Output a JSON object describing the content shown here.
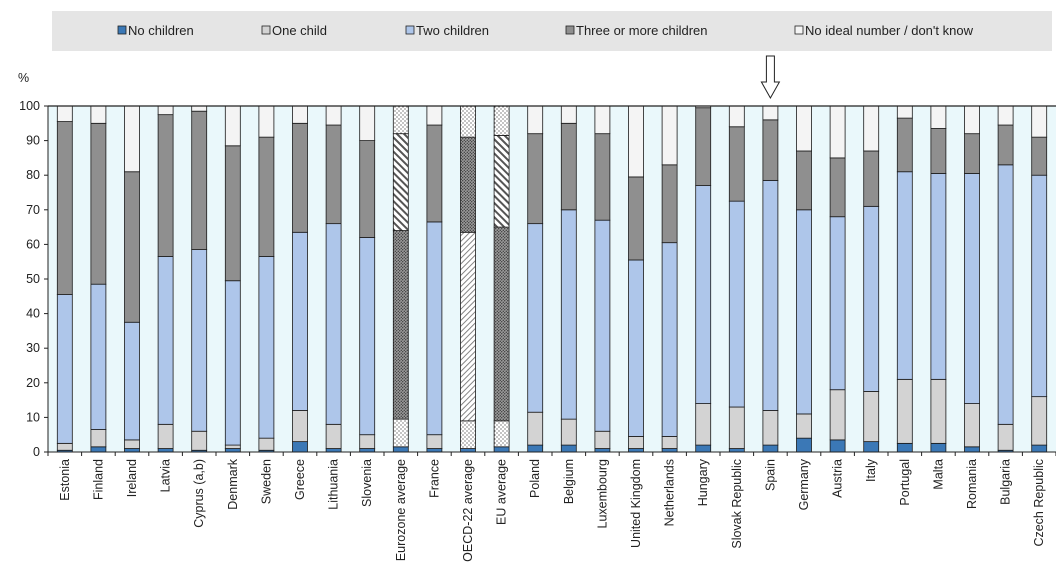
{
  "chart_data": {
    "type": "bar",
    "stacked": true,
    "y_unit": "%",
    "ylim": [
      0,
      100
    ],
    "yticks": [
      0,
      10,
      20,
      30,
      40,
      50,
      60,
      70,
      80,
      90,
      100
    ],
    "grid": false,
    "legend_position": "top",
    "marker": {
      "category": "Spain",
      "symbol": "down-arrow"
    },
    "categories": [
      "Estonia",
      "Finland",
      "Ireland",
      "Latvia",
      "Cyprus (a,b)",
      "Denmark",
      "Sweden",
      "Greece",
      "Lithuania",
      "Slovenia",
      "Eurozone average",
      "France",
      "OECD-22 average",
      "EU average",
      "Poland",
      "Belgium",
      "Luxembourg",
      "United Kingdom",
      "Netherlands",
      "Hungary",
      "Slovak Republic",
      "Spain",
      "Germany",
      "Austria",
      "Italy",
      "Portugal",
      "Malta",
      "Romania",
      "Bulgaria",
      "Czech Republic"
    ],
    "average_categories": [
      "Eurozone average",
      "OECD-22 average",
      "EU average"
    ],
    "series": [
      {
        "name": "No children",
        "color": "#3b78b6",
        "values": [
          0.5,
          1.5,
          1.0,
          1.0,
          0.5,
          1.0,
          0.5,
          3.0,
          1.0,
          1.0,
          1.5,
          1.0,
          1.0,
          1.5,
          2.0,
          2.0,
          1.0,
          1.0,
          1.0,
          2.0,
          1.0,
          2.0,
          4.0,
          3.5,
          3.0,
          2.5,
          2.5,
          1.5,
          0.5,
          2.0
        ]
      },
      {
        "name": "One child",
        "color": "#d3d3d3",
        "values": [
          2.0,
          5.0,
          2.5,
          7.0,
          5.5,
          1.0,
          3.5,
          9.0,
          7.0,
          4.0,
          8.0,
          4.0,
          8.0,
          7.5,
          9.5,
          7.5,
          5.0,
          3.5,
          3.5,
          12.0,
          12.0,
          10.0,
          7.0,
          14.5,
          14.5,
          18.5,
          18.5,
          12.5,
          7.5,
          14.0
        ]
      },
      {
        "name": "Two children",
        "color": "#aec6ea",
        "values": [
          43.0,
          42.0,
          34.0,
          48.5,
          52.5,
          47.5,
          52.5,
          51.5,
          58.0,
          57.0,
          54.5,
          61.5,
          54.5,
          56.0,
          54.5,
          60.5,
          61.0,
          51.0,
          56.0,
          63.0,
          59.5,
          66.5,
          59.0,
          50.0,
          53.5,
          60.0,
          59.5,
          66.5,
          75.0,
          64.0
        ]
      },
      {
        "name": "Three or more children",
        "color": "#8f8f8f",
        "values": [
          50.0,
          46.5,
          43.5,
          41.0,
          40.0,
          39.0,
          34.5,
          31.5,
          28.5,
          28.0,
          28.0,
          28.0,
          27.5,
          26.5,
          26.0,
          25.0,
          25.0,
          24.0,
          22.5,
          22.5,
          21.5,
          17.5,
          17.0,
          17.0,
          16.0,
          15.5,
          13.0,
          11.5,
          11.5,
          11.0
        ]
      },
      {
        "name": "No ideal number / don't know",
        "color": "#f4f4f4",
        "values": [
          4.5,
          5.0,
          19.0,
          2.5,
          1.5,
          11.5,
          9.0,
          5.0,
          5.5,
          10.0,
          8.0,
          5.5,
          9.0,
          8.5,
          8.0,
          5.0,
          8.0,
          20.5,
          17.0,
          0.5,
          6.0,
          4.0,
          13.0,
          15.0,
          13.0,
          3.5,
          6.5,
          8.0,
          5.5,
          9.0
        ]
      }
    ]
  }
}
